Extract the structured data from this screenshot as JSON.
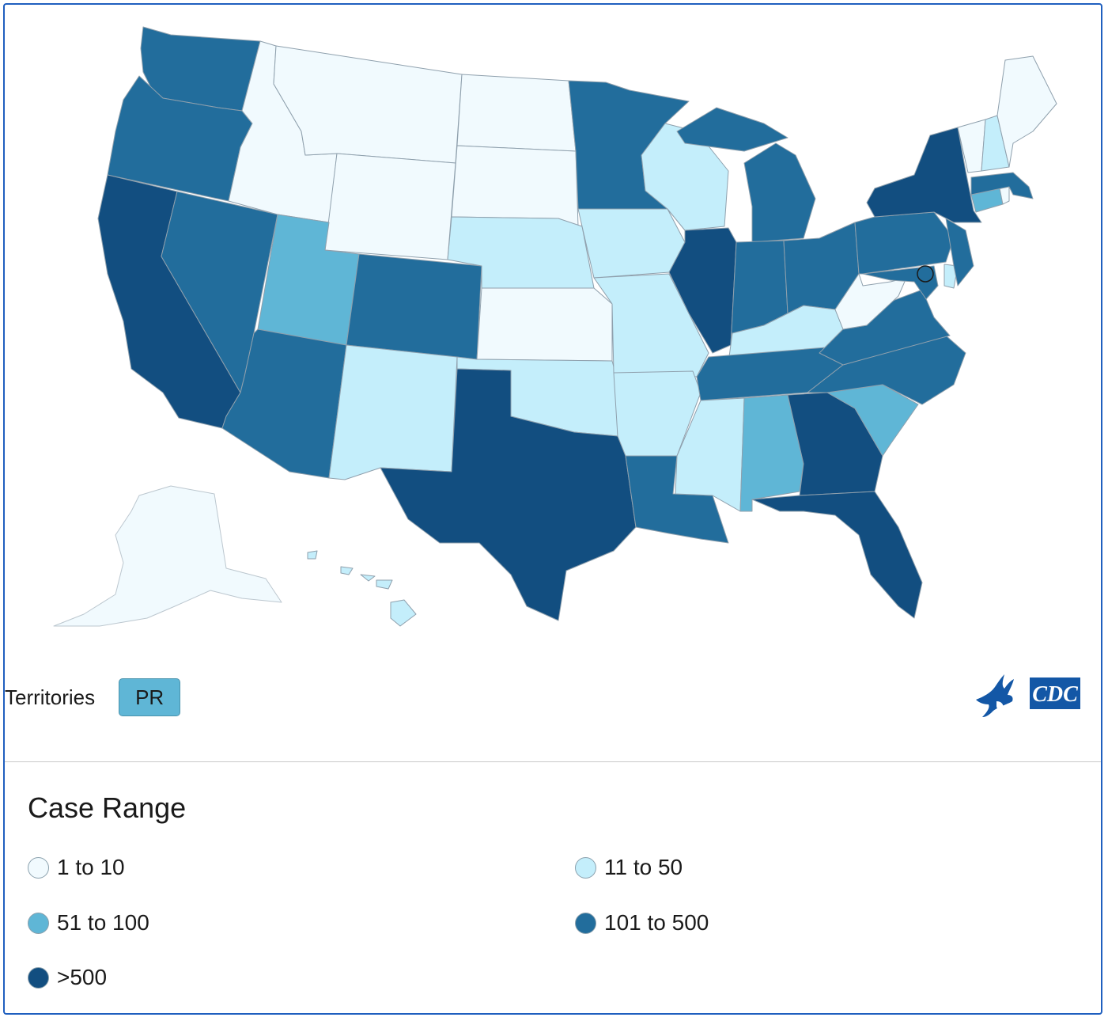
{
  "map": {
    "territories_label": "Territories",
    "territory_buttons": [
      {
        "code": "PR",
        "range": "51 to 100"
      }
    ],
    "state_ranges": {
      "WA": "101 to 500",
      "OR": "101 to 500",
      "CA": ">500",
      "NV": "101 to 500",
      "ID": "1 to 10",
      "MT": "1 to 10",
      "WY": "1 to 10",
      "UT": "51 to 100",
      "AZ": "101 to 500",
      "NM": "11 to 50",
      "CO": "101 to 500",
      "ND": "1 to 10",
      "SD": "1 to 10",
      "NE": "11 to 50",
      "KS": "1 to 10",
      "OK": "11 to 50",
      "TX": ">500",
      "MN": "101 to 500",
      "IA": "11 to 50",
      "MO": "11 to 50",
      "AR": "11 to 50",
      "LA": "101 to 500",
      "WI": "11 to 50",
      "IL": ">500",
      "MI": "101 to 500",
      "IN": "101 to 500",
      "OH": "101 to 500",
      "KY": "11 to 50",
      "TN": "101 to 500",
      "MS": "11 to 50",
      "AL": "51 to 100",
      "GA": ">500",
      "FL": ">500",
      "SC": "51 to 100",
      "NC": "101 to 500",
      "VA": "101 to 500",
      "WV": "1 to 10",
      "PA": "101 to 500",
      "NY": ">500",
      "VT": "1 to 10",
      "NH": "11 to 50",
      "ME": "1 to 10",
      "MA": "101 to 500",
      "CT": "51 to 100",
      "RI": "1 to 10",
      "NJ": "101 to 500",
      "DE": "11 to 50",
      "MD": "101 to 500",
      "DC": "101 to 500",
      "AK": "1 to 10",
      "HI": "11 to 50"
    }
  },
  "legend": {
    "title": "Case Range",
    "items": [
      {
        "label": "1 to 10",
        "color": "#f1fafe"
      },
      {
        "label": "11 to 50",
        "color": "#c4eefb"
      },
      {
        "label": "51 to 100",
        "color": "#5fb6d6"
      },
      {
        "label": "101 to 500",
        "color": "#226d9c"
      },
      {
        "label": ">500",
        "color": "#124e80"
      }
    ]
  }
}
